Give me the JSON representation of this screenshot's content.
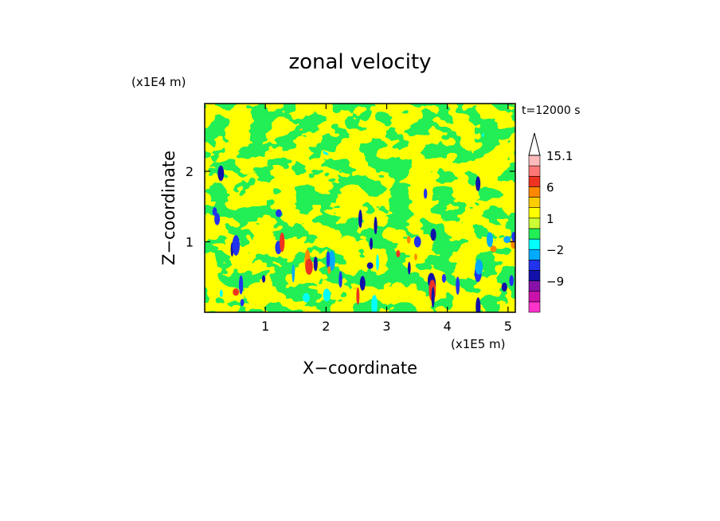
{
  "chart_data": {
    "type": "heatmap",
    "title": "zonal velocity",
    "xlabel": "X−coordinate",
    "ylabel": "Z−coordinate",
    "x_unit": "(x1E5 m)",
    "y_unit": "(x1E4 m)",
    "time_label": "t=12000 s",
    "xlim": [
      0,
      5.12
    ],
    "ylim": [
      0,
      2.96
    ],
    "x_ticks": [
      1,
      2,
      3,
      4,
      5
    ],
    "y_ticks": [
      1,
      2
    ],
    "colorbar": {
      "levels": [
        -15,
        -12,
        -9,
        -6,
        -4,
        -2,
        -1,
        0,
        1,
        2,
        4,
        6,
        9,
        12,
        15.1
      ],
      "labels": [
        {
          "value": 15.1,
          "text": "15.1"
        },
        {
          "value": 6,
          "text": "6"
        },
        {
          "value": 1,
          "text": "1"
        },
        {
          "value": -2,
          "text": "−2"
        },
        {
          "value": -9,
          "text": "−9"
        }
      ],
      "colors": [
        "#ff33cc",
        "#cc11aa",
        "#8811aa",
        "#1111aa",
        "#2233ee",
        "#00aaff",
        "#00ffff",
        "#22ee55",
        "#ccff33",
        "#ffff00",
        "#ffcc00",
        "#ff8800",
        "#ee3322",
        "#ff7777",
        "#ffbbbb"
      ],
      "extend_top": true
    },
    "field_description": "turbulent zonal velocity field dominated by yellow/green (near 0), cyan bands aloft, blue/red cores near surface"
  }
}
